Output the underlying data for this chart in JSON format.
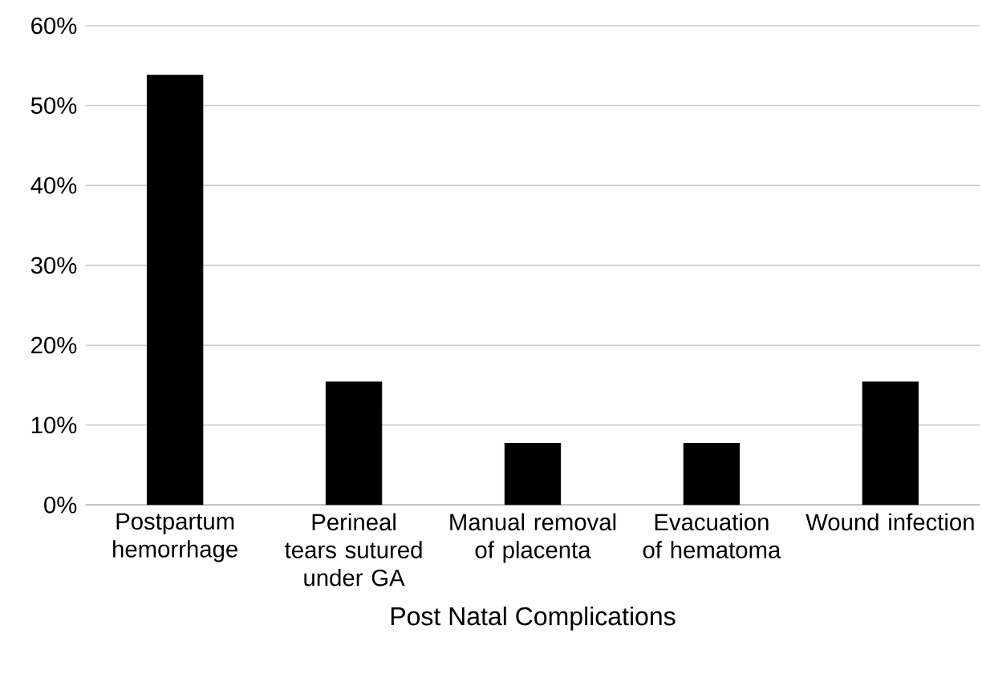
{
  "chart_data": {
    "type": "bar",
    "xlabel": "Post Natal Complications",
    "categories": [
      "Postpartum hemorrhage",
      "Perineal tears sutured under GA",
      "Manual removal of placenta",
      "Evacuation of hematoma",
      "Wound infection"
    ],
    "values": [
      53.8,
      15.4,
      7.7,
      7.7,
      15.4
    ],
    "color": "#000000",
    "ylim": [
      0,
      60
    ],
    "yticks": [
      {
        "value": 0,
        "label": "0%"
      },
      {
        "value": 10,
        "label": "10%"
      },
      {
        "value": 20,
        "label": "20%"
      },
      {
        "value": 30,
        "label": "30%"
      },
      {
        "value": 40,
        "label": "40%"
      },
      {
        "value": 50,
        "label": "50%"
      },
      {
        "value": 60,
        "label": "60%"
      }
    ],
    "grid": "y"
  }
}
